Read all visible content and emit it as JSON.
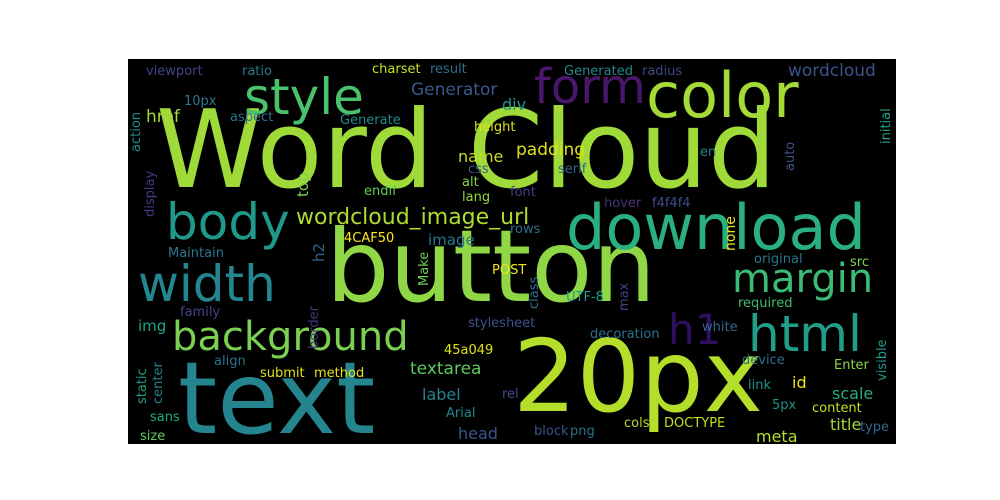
{
  "words": {
    "word_cloud": "Word Cloud",
    "button": "button",
    "text": "text",
    "p20px": "20px",
    "download": "download",
    "color": "color",
    "style": "style",
    "body": "body",
    "width": "width",
    "background": "background",
    "html": "html",
    "margin": "margin",
    "form": "form",
    "h1": "h1",
    "wordcloud_image_url": "wordcloud_image_url",
    "wordcloud": "wordcloud",
    "generator": "Generator",
    "href": "href",
    "padding": "padding",
    "name": "name",
    "div": "div",
    "textarea": "textarea",
    "label": "label",
    "head": "head",
    "meta": "meta",
    "title": "title",
    "scale": "scale",
    "id": "id",
    "image": "image",
    "img": "img",
    "top": "top",
    "h2": "h2",
    "css": "css",
    "alt": "alt",
    "lang": "lang",
    "font": "font",
    "serif": "serif",
    "hover": "hover",
    "f4f4f4": "f4f4f4",
    "endif": "endif",
    "c4CAF50": "4CAF50",
    "rows": "rows",
    "none": "none",
    "post": "POST",
    "make": "Make",
    "class": "class",
    "utf8": "UTF-8",
    "max": "max",
    "src": "src",
    "original": "original",
    "required": "required",
    "border": "border",
    "stylesheet": "stylesheet",
    "decoration": "decoration",
    "white": "white",
    "c45a049": "45a049",
    "align": "align",
    "submit": "submit",
    "method": "method",
    "rel": "rel",
    "arial": "Arial",
    "block": "block",
    "png": "png",
    "cols": "cols",
    "doctype": "DOCTYPE",
    "link": "link",
    "device": "device",
    "enter": "Enter",
    "p5px": "5px",
    "content": "content",
    "type": "type",
    "visible": "visible",
    "initial": "initial",
    "auto": "auto",
    "en": "en",
    "viewport": "viewport",
    "ratio": "ratio",
    "charset": "charset",
    "result": "result",
    "generated": "Generated",
    "radius": "radius",
    "p10px": "10px",
    "aspect": "aspect",
    "generate": "Generate",
    "height": "height",
    "action": "action",
    "display": "display",
    "center": "center",
    "maintain": "Maintain",
    "family": "family",
    "static": "static",
    "sans": "sans",
    "size": "size"
  }
}
